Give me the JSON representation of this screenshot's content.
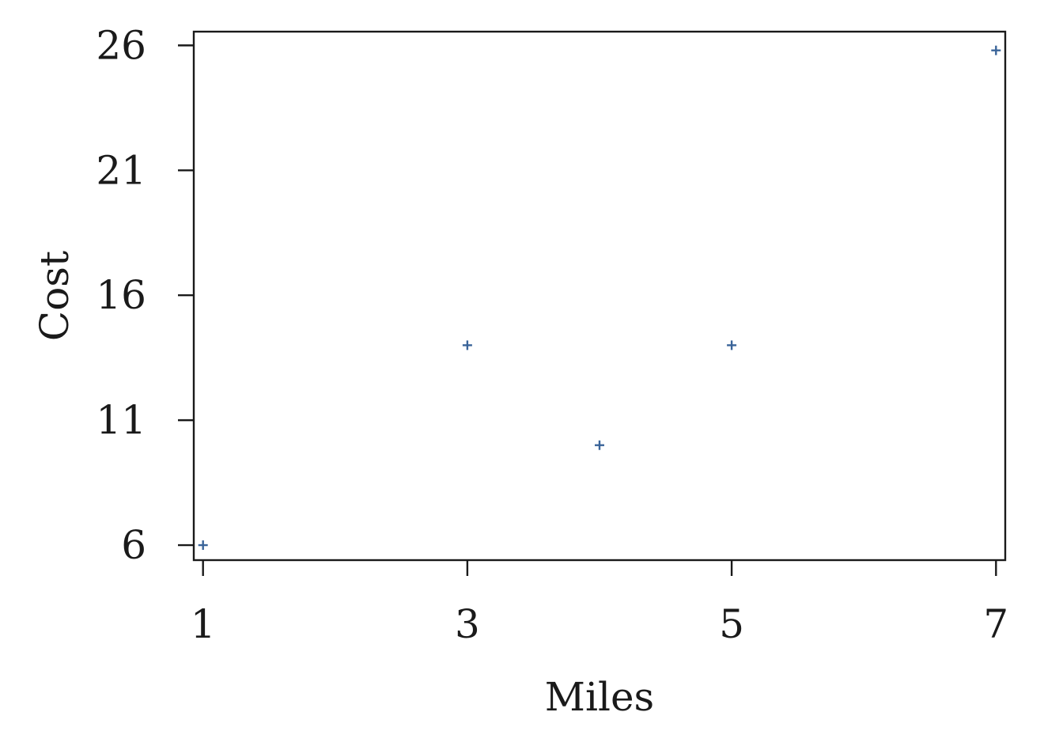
{
  "chart_data": {
    "type": "scatter",
    "title": "",
    "xlabel": "Miles",
    "ylabel": "Cost",
    "xlim": [
      0.93,
      7.07
    ],
    "ylim": [
      5.4,
      26.55
    ],
    "xticks": [
      1,
      3,
      5,
      7
    ],
    "yticks": [
      6,
      11,
      16,
      21,
      26
    ],
    "grid": false,
    "legend": "none",
    "marker": "plus",
    "marker_color": "#3a6499",
    "series": [
      {
        "x": [
          1,
          3,
          4,
          5,
          7
        ],
        "y": [
          6,
          14,
          10,
          14,
          25.8
        ]
      }
    ]
  }
}
